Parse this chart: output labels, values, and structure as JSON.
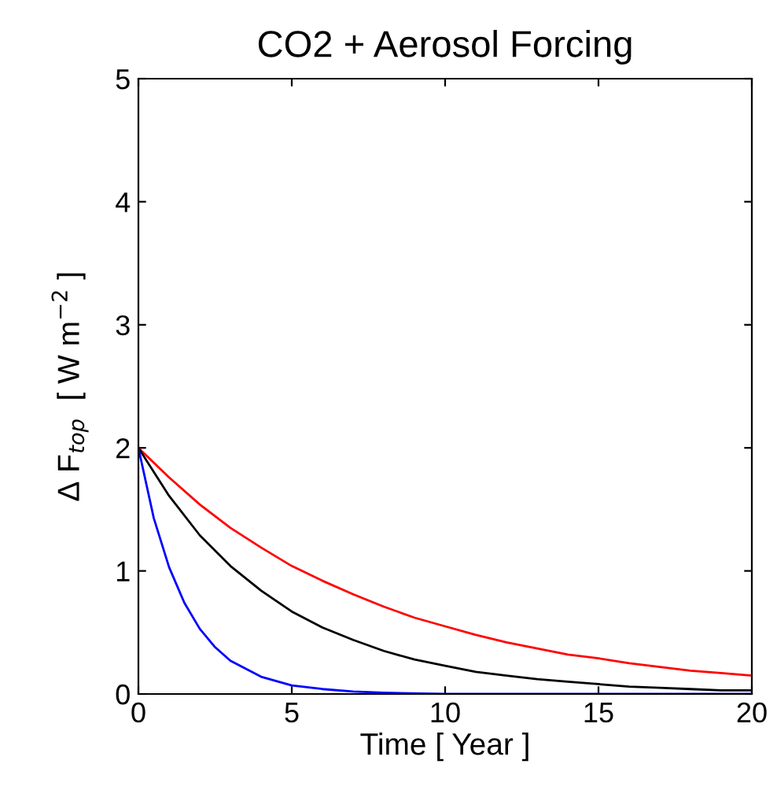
{
  "chart_data": {
    "type": "line",
    "title": "CO2 + Aerosol Forcing",
    "xlabel": "Time [ Year ]",
    "ylabel": "Δ F$_{top}$  [ W m$^{−2}$ ]",
    "xlim": [
      0,
      20
    ],
    "ylim": [
      0,
      5
    ],
    "xticks": [
      0,
      5,
      10,
      15,
      20
    ],
    "yticks": [
      0,
      1,
      2,
      3,
      4,
      5
    ],
    "grid": false,
    "marker": "none",
    "line_style": "solid",
    "series": [
      {
        "color": "#ff0000",
        "x": [
          0,
          1,
          2,
          3,
          4,
          5,
          6,
          7,
          8,
          9,
          10,
          11,
          12,
          13,
          14,
          15,
          16,
          17,
          18,
          19,
          20
        ],
        "values": [
          2.0,
          1.76,
          1.54,
          1.35,
          1.19,
          1.04,
          0.92,
          0.81,
          0.71,
          0.62,
          0.55,
          0.48,
          0.42,
          0.37,
          0.32,
          0.29,
          0.25,
          0.22,
          0.19,
          0.17,
          0.15
        ]
      },
      {
        "color": "#000000",
        "x": [
          0,
          1,
          2,
          3,
          4,
          5,
          6,
          7,
          8,
          9,
          10,
          11,
          12,
          13,
          14,
          15,
          16,
          17,
          18,
          19,
          20
        ],
        "values": [
          2.0,
          1.61,
          1.29,
          1.04,
          0.84,
          0.67,
          0.54,
          0.44,
          0.35,
          0.28,
          0.23,
          0.18,
          0.15,
          0.12,
          0.1,
          0.08,
          0.06,
          0.05,
          0.04,
          0.03,
          0.03
        ]
      },
      {
        "color": "#0000ff",
        "x": [
          0,
          0.5,
          1,
          1.5,
          2,
          2.5,
          3,
          4,
          5,
          6,
          7,
          8,
          10,
          20
        ],
        "values": [
          2.0,
          1.43,
          1.03,
          0.74,
          0.53,
          0.38,
          0.27,
          0.14,
          0.07,
          0.04,
          0.02,
          0.01,
          0.0,
          0.0
        ]
      }
    ]
  }
}
